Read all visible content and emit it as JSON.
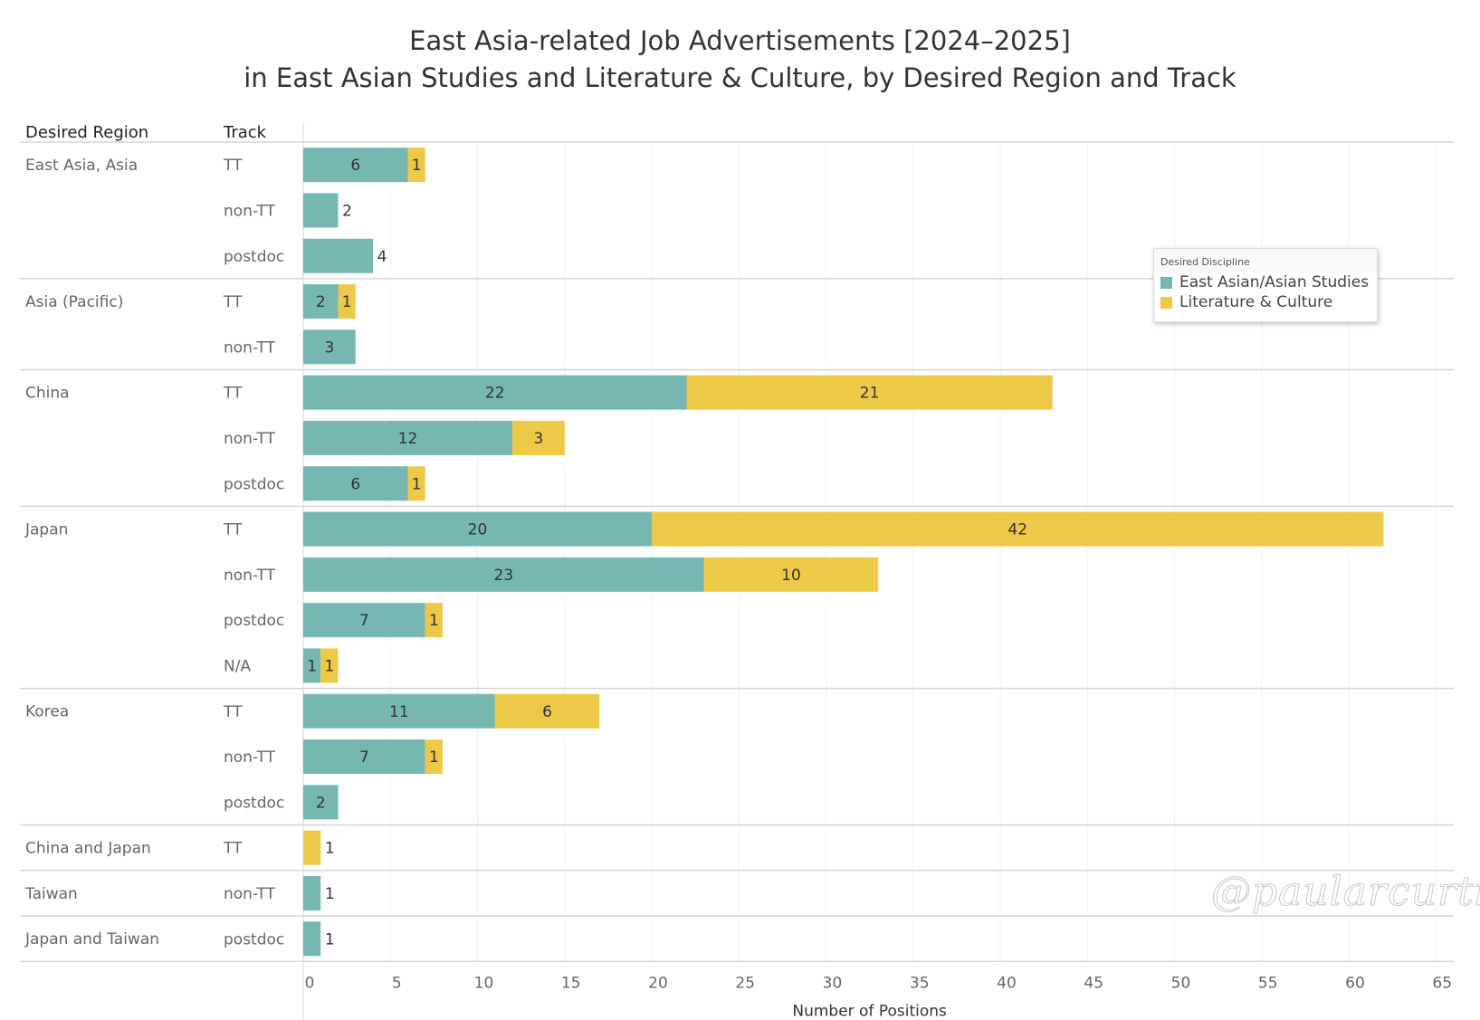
{
  "chart_data": {
    "type": "bar",
    "orientation": "horizontal-stacked",
    "title": "East Asia-related Job Advertisements [2024–2025]",
    "subtitle": "in East Asian Studies and Literature & Culture, by Desired Region and Track",
    "row_headers": [
      "Desired Region",
      "Track"
    ],
    "xlabel": "Number of Positions",
    "xlim": [
      0,
      65
    ],
    "xticks": [
      0,
      5,
      10,
      15,
      20,
      25,
      30,
      35,
      40,
      45,
      50,
      55,
      60,
      65
    ],
    "grid": true,
    "legend": {
      "title": "Desired Discipline",
      "placement": "right"
    },
    "series": [
      {
        "name": "East Asian/Asian Studies",
        "color": "#76b7b2"
      },
      {
        "name": "Literature & Culture",
        "color": "#edc948"
      }
    ],
    "groups": [
      {
        "region": "East Asia, Asia",
        "rows": [
          {
            "track": "TT",
            "values": [
              6,
              1
            ]
          },
          {
            "track": "non-TT",
            "values": [
              2,
              0
            ]
          },
          {
            "track": "postdoc",
            "values": [
              4,
              0
            ]
          }
        ]
      },
      {
        "region": "Asia (Pacific)",
        "rows": [
          {
            "track": "TT",
            "values": [
              2,
              1
            ]
          },
          {
            "track": "non-TT",
            "values": [
              3,
              0
            ]
          }
        ]
      },
      {
        "region": "China",
        "rows": [
          {
            "track": "TT",
            "values": [
              22,
              21
            ]
          },
          {
            "track": "non-TT",
            "values": [
              12,
              3
            ]
          },
          {
            "track": "postdoc",
            "values": [
              6,
              1
            ]
          }
        ]
      },
      {
        "region": "Japan",
        "rows": [
          {
            "track": "TT",
            "values": [
              20,
              42
            ]
          },
          {
            "track": "non-TT",
            "values": [
              23,
              10
            ]
          },
          {
            "track": "postdoc",
            "values": [
              7,
              1
            ]
          },
          {
            "track": "N/A",
            "values": [
              1,
              1
            ]
          }
        ]
      },
      {
        "region": "Korea",
        "rows": [
          {
            "track": "TT",
            "values": [
              11,
              6
            ]
          },
          {
            "track": "non-TT",
            "values": [
              7,
              1
            ]
          },
          {
            "track": "postdoc",
            "values": [
              2,
              0
            ]
          }
        ]
      },
      {
        "region": "China and Japan",
        "rows": [
          {
            "track": "TT",
            "values": [
              0,
              1
            ]
          }
        ]
      },
      {
        "region": "Taiwan",
        "rows": [
          {
            "track": "non-TT",
            "values": [
              1,
              0
            ]
          }
        ]
      },
      {
        "region": "Japan and Taiwan",
        "rows": [
          {
            "track": "postdoc",
            "values": [
              1,
              0
            ]
          }
        ]
      }
    ]
  },
  "watermark": "@paularcurtis"
}
